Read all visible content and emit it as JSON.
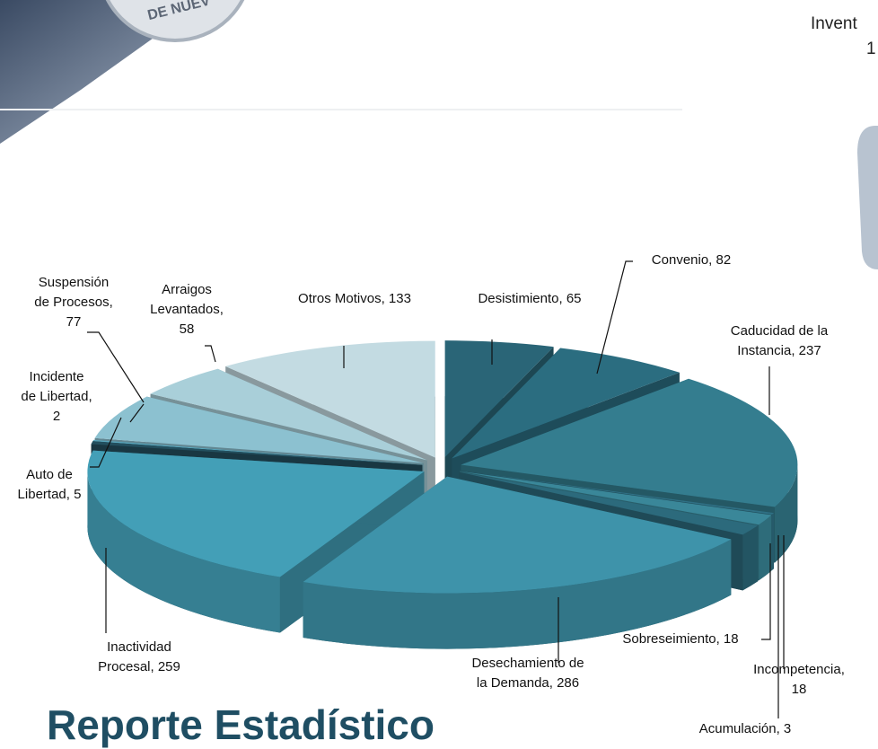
{
  "logo_text": "DE NUEV",
  "header": {
    "title": "Invent",
    "subtitle": "1"
  },
  "footer_title": "Reporte Estadístico",
  "chart_data": {
    "type": "pie",
    "three_d": true,
    "exploded": true,
    "values": [
      65,
      82,
      237,
      3,
      18,
      18,
      286,
      259,
      5,
      2,
      77,
      58,
      133
    ],
    "value_labels": [
      "Desistimiento, 65",
      "Convenio, 82",
      "Caducidad de la\nInstancia, 237",
      "Acumulación, 3",
      "Incompetencia, 18",
      "Sobreseimiento, 18",
      "Desechamiento de\nla Demanda, 286",
      "Inactividad\nProcesal, 259",
      "Auto de\nLibertad, 5",
      "Incidente\nde Libertad,\n2",
      "Suspensión\nde Procesos,\n77",
      "Arraigos\nLevantados,\n58",
      "Otros Motivos, 133"
    ],
    "colors": [
      "#2a6577",
      "#2b6d80",
      "#347d8f",
      "#2f7084",
      "#3a8799",
      "#2c6a7c",
      "#3e93aa",
      "#439fb7",
      "#234f5e",
      "#5aa7bd",
      "#8cc1d0",
      "#a9cfd9",
      "#c3dbe2"
    ]
  }
}
